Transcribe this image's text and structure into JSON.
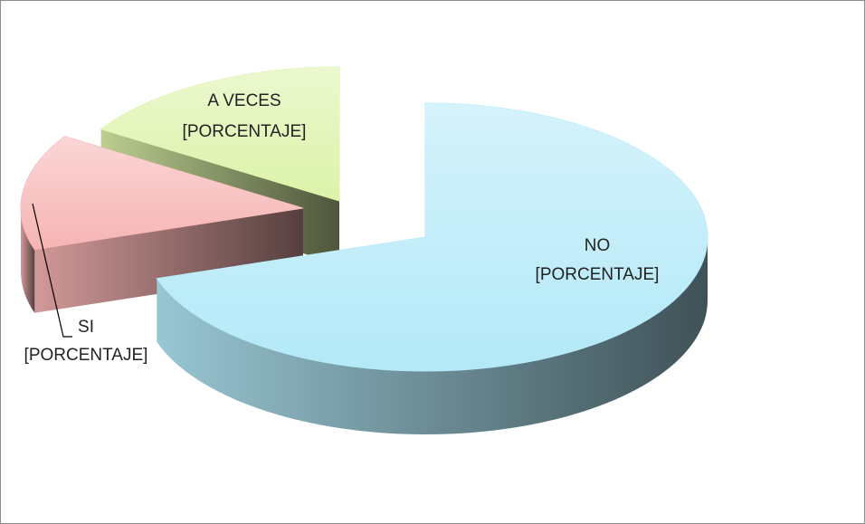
{
  "chart_data": {
    "type": "pie",
    "categories": [
      "NO",
      "SI",
      "A VECES"
    ],
    "values": [
      70,
      14,
      16
    ],
    "value_labels": [
      "[PORCENTAJE]",
      "[PORCENTAJE]",
      "[PORCENTAJE]"
    ],
    "colors": [
      "#b3e9f8",
      "#f7b4b4",
      "#dcf3a8"
    ]
  }
}
